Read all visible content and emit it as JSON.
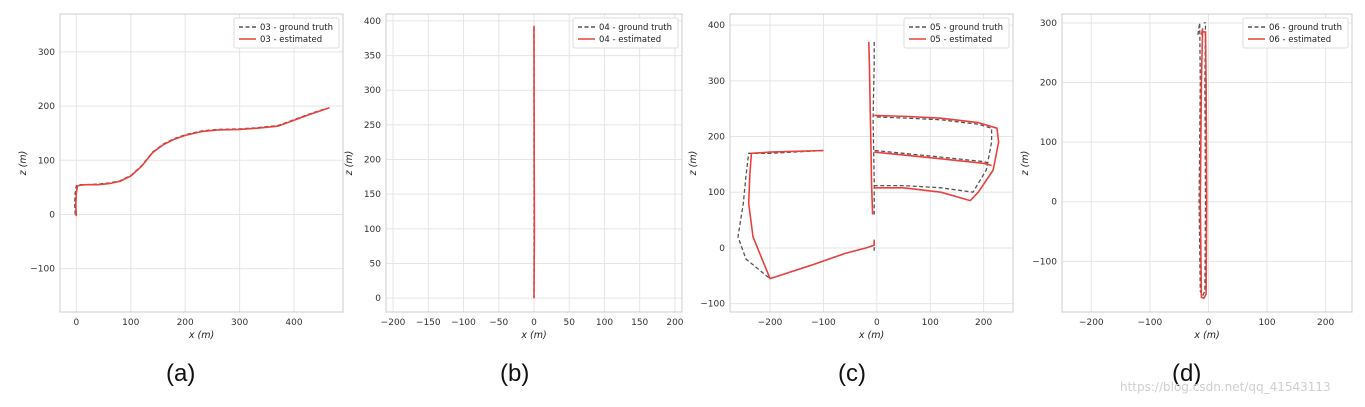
{
  "chart_data": [
    {
      "type": "line",
      "caption": "(a)",
      "xlabel": "x (m)",
      "ylabel": "z (m)",
      "xlim": [
        -30,
        490
      ],
      "ylim": [
        -180,
        370
      ],
      "xticks": [
        0,
        100,
        200,
        300,
        400
      ],
      "yticks": [
        -100,
        0,
        100,
        200,
        300
      ],
      "grid": true,
      "legend_placement": "top-right",
      "series": [
        {
          "name": "03 - ground truth",
          "color": "#555555",
          "style": "dashed",
          "x": [
            -2,
            -3,
            -2,
            0,
            5,
            20,
            40,
            60,
            80,
            100,
            120,
            140,
            160,
            180,
            200,
            230,
            260,
            300,
            330,
            370,
            400,
            430,
            460
          ],
          "y": [
            0,
            20,
            40,
            53,
            55,
            55,
            56,
            58,
            62,
            72,
            90,
            115,
            130,
            140,
            147,
            154,
            157,
            158,
            160,
            164,
            175,
            186,
            196
          ]
        },
        {
          "name": "03 - estimated",
          "color": "#e8413e",
          "style": "solid",
          "x": [
            0,
            -1,
            0,
            2,
            6,
            20,
            40,
            60,
            80,
            100,
            120,
            140,
            160,
            180,
            200,
            230,
            260,
            300,
            330,
            370,
            400,
            430,
            465
          ],
          "y": [
            -3,
            18,
            38,
            52,
            54,
            55,
            55,
            57,
            61,
            71,
            89,
            114,
            129,
            139,
            146,
            153,
            156,
            157,
            159,
            163,
            174,
            185,
            197
          ]
        }
      ]
    },
    {
      "type": "line",
      "caption": "(b)",
      "xlabel": "x (m)",
      "ylabel": "z (m)",
      "xlim": [
        -210,
        210
      ],
      "ylim": [
        -20,
        410
      ],
      "xticks": [
        -200,
        -150,
        -100,
        -50,
        0,
        50,
        100,
        150,
        200
      ],
      "yticks": [
        0,
        50,
        100,
        150,
        200,
        250,
        300,
        350,
        400
      ],
      "grid": true,
      "legend_placement": "top-right",
      "series": [
        {
          "name": "04 - ground truth",
          "color": "#555555",
          "style": "dashed",
          "x": [
            0,
            0,
            0,
            0,
            0
          ],
          "y": [
            0,
            100,
            200,
            300,
            393
          ]
        },
        {
          "name": "04 - estimated",
          "color": "#e8413e",
          "style": "solid",
          "x": [
            0,
            0.5,
            0.3,
            0.2,
            0
          ],
          "y": [
            0,
            100,
            200,
            300,
            393
          ]
        }
      ]
    },
    {
      "type": "line",
      "caption": "(c)",
      "xlabel": "x (m)",
      "ylabel": "z (m)",
      "xlim": [
        -275,
        255
      ],
      "ylim": [
        -115,
        420
      ],
      "xticks": [
        -200,
        -100,
        0,
        100,
        200
      ],
      "yticks": [
        -100,
        0,
        100,
        200,
        300,
        400
      ],
      "grid": true,
      "legend_placement": "top-right",
      "series": [
        {
          "name": "05 - ground truth",
          "color": "#555555",
          "style": "dashed",
          "x": [
            -5,
            -5,
            -6,
            -7,
            -6,
            -5,
            -5,
            0,
            60,
            120,
            190,
            215,
            215,
            205,
            180,
            120,
            50,
            -5,
            -5,
            -4,
            100,
            200,
            210,
            -100,
            -200,
            -240,
            -245,
            -250,
            -260,
            -245,
            -200,
            -120,
            -60,
            -20,
            -5,
            -5
          ],
          "y": [
            370,
            330,
            280,
            230,
            180,
            120,
            60,
            235,
            233,
            230,
            222,
            215,
            190,
            140,
            100,
            108,
            112,
            112,
            10,
            175,
            165,
            155,
            152,
            175,
            170,
            170,
            130,
            80,
            20,
            -20,
            -55,
            -30,
            -10,
            0,
            5,
            -5
          ],
          "break_indices": [
            7,
            18,
            19,
            23
          ]
        },
        {
          "name": "05 - estimated",
          "color": "#e8413e",
          "style": "solid",
          "x": [
            -15,
            -14,
            -13,
            -12,
            -11,
            -10,
            -8,
            -5,
            60,
            120,
            190,
            225,
            228,
            218,
            190,
            175,
            120,
            50,
            -5,
            -7,
            -5,
            100,
            200,
            215,
            -100,
            -200,
            -235,
            -238,
            -240,
            -232,
            -200,
            -120,
            -60,
            -20,
            -5,
            -5
          ],
          "y": [
            370,
            330,
            280,
            230,
            180,
            120,
            60,
            238,
            236,
            233,
            225,
            215,
            190,
            140,
            100,
            85,
            100,
            108,
            108,
            10,
            172,
            162,
            152,
            148,
            175,
            172,
            170,
            130,
            80,
            20,
            -55,
            -30,
            -10,
            0,
            5,
            15
          ],
          "break_indices": [
            7,
            19,
            20,
            24
          ]
        }
      ]
    },
    {
      "type": "line",
      "caption": "(d)",
      "xlabel": "x (m)",
      "ylabel": "z (m)",
      "xlim": [
        -250,
        245
      ],
      "ylim": [
        -185,
        315
      ],
      "xticks": [
        -200,
        -100,
        0,
        100,
        200
      ],
      "yticks": [
        -100,
        0,
        100,
        200,
        300
      ],
      "grid": true,
      "legend_placement": "top-right",
      "series": [
        {
          "name": "06 - ground truth",
          "color": "#555555",
          "style": "dashed",
          "x": [
            -18,
            -15,
            -14,
            -16,
            -14,
            -10,
            -6,
            -5,
            -6,
            -5,
            -8
          ],
          "y": [
            280,
            300,
            200,
            0,
            -150,
            -158,
            -150,
            0,
            200,
            300,
            300
          ]
        },
        {
          "name": "06 - estimated",
          "color": "#e8413e",
          "style": "solid",
          "x": [
            -12,
            -10,
            -12,
            -14,
            -12,
            -8,
            -4,
            -3,
            -4,
            -5,
            -12
          ],
          "y": [
            280,
            290,
            200,
            0,
            -160,
            -162,
            -155,
            0,
            200,
            285,
            285
          ]
        }
      ]
    }
  ],
  "watermark": "https://blog.csdn.net/qq_41543113",
  "colors": {
    "grid": "#e5e5e5",
    "spine": "#cccccc",
    "estimated": "#e8413e",
    "ground_truth": "#555555"
  }
}
